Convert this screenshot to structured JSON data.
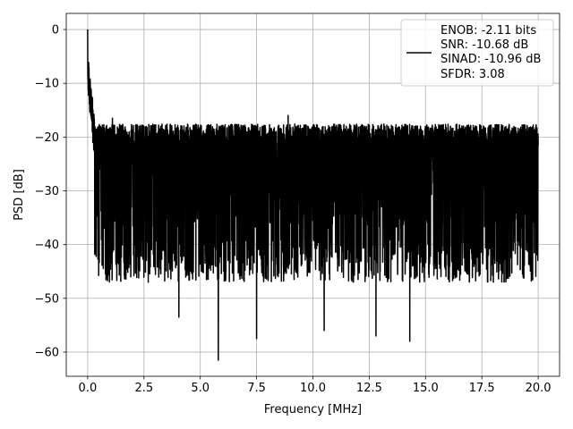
{
  "chart_data": {
    "type": "line",
    "xlabel": "Frequency [MHz]",
    "ylabel": "PSD [dB]",
    "xlim": [
      -0.95,
      20.95
    ],
    "ylim": [
      -64.5,
      3.0
    ],
    "xticks": [
      0.0,
      2.5,
      5.0,
      7.5,
      10.0,
      12.5,
      15.0,
      17.5,
      20.0
    ],
    "xtick_labels": [
      "0.0",
      "2.5",
      "5.0",
      "7.5",
      "10.0",
      "12.5",
      "15.0",
      "17.5",
      "20.0"
    ],
    "yticks": [
      0,
      -10,
      -20,
      -30,
      -40,
      -50,
      -60
    ],
    "ytick_labels": [
      "0",
      "−10",
      "−20",
      "−30",
      "−40",
      "−50",
      "−60"
    ],
    "grid": true,
    "legend_position": "upper right",
    "series": [
      {
        "name": "ENOB: -2.11 bits\nSNR: -10.68 dB\nSINAD: -10.96 dB\nSFDR: 3.08",
        "color": "#000000",
        "x_range": [
          0.0,
          20.0
        ],
        "noise_floor_upper_db": -20.0,
        "noise_floor_median_db": -30.0,
        "noise_floor_lower_db": -43.0,
        "peaks": [
          {
            "x": 0.0,
            "y": 0.0
          },
          {
            "x": 0.05,
            "y": -9.0
          },
          {
            "x": 0.15,
            "y": -11.0
          },
          {
            "x": 1.1,
            "y": -16.5
          },
          {
            "x": 8.9,
            "y": -16.0
          },
          {
            "x": 17.8,
            "y": -19.0
          }
        ],
        "dips": [
          {
            "x": 4.05,
            "y": -53.5
          },
          {
            "x": 5.8,
            "y": -61.5
          },
          {
            "x": 7.5,
            "y": -57.5
          },
          {
            "x": 10.5,
            "y": -56.0
          },
          {
            "x": 12.8,
            "y": -57.0
          },
          {
            "x": 14.3,
            "y": -58.0
          }
        ]
      }
    ]
  },
  "legend": {
    "lines": [
      "ENOB: -2.11 bits",
      "SNR: -10.68 dB",
      "SINAD: -10.96 dB",
      "SFDR: 3.08"
    ]
  }
}
